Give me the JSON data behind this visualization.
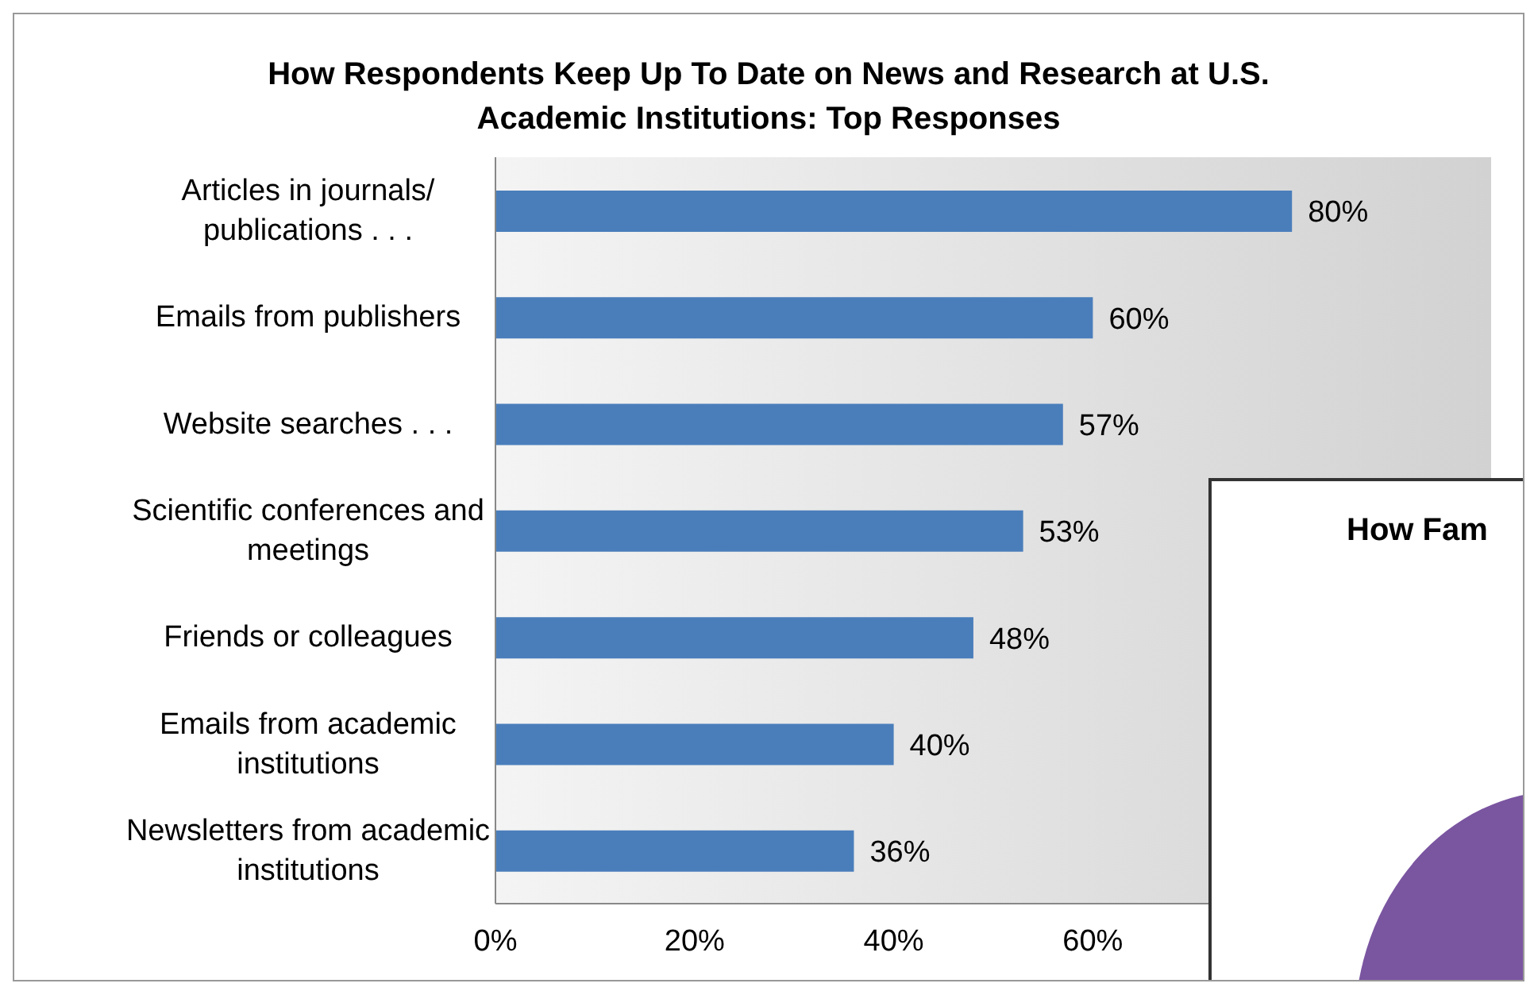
{
  "chart_data": [
    {
      "type": "bar",
      "orientation": "horizontal",
      "title": "How Respondents Keep Up To Date on News and Research at U.S. Academic Institutions: Top Responses",
      "categories": [
        "Articles in journals/ publications . . .",
        "Emails from publishers",
        "Website searches . . .",
        "Scientific conferences and meetings",
        "Friends or colleagues",
        "Emails from academic institutions",
        "Newsletters from academic institutions"
      ],
      "values": [
        80,
        60,
        57,
        53,
        48,
        40,
        36
      ],
      "value_labels": [
        "80%",
        "60%",
        "57%",
        "53%",
        "48%",
        "40%",
        "36%"
      ],
      "color": "#4a7ebb",
      "xlim": [
        0,
        100
      ],
      "xticks": [
        {
          "value": 0,
          "label": "0%"
        },
        {
          "value": 20,
          "label": "20%"
        },
        {
          "value": 40,
          "label": "40%"
        },
        {
          "value": 60,
          "label": "60%"
        }
      ],
      "tick_labels": "x"
    },
    {
      "type": "other",
      "title": "How Fam"
    }
  ]
}
